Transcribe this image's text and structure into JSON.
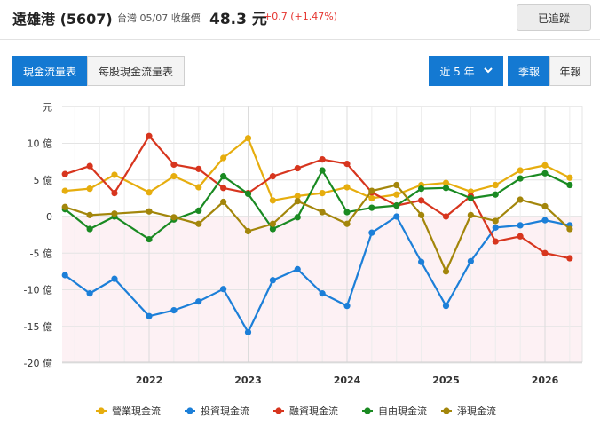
{
  "header": {
    "stock_name": "遠雄港 (5607)",
    "quote_label": "台灣 05/07 收盤價",
    "price": "48.3 元",
    "change": "+0.7 (+1.47%)",
    "follow_label": "已追蹤"
  },
  "toolbar": {
    "tab_cashflow": "現金流量表",
    "tab_per_share": "每股現金流量表",
    "range_label": "近 5 年",
    "quarterly_label": "季報",
    "annual_label": "年報"
  },
  "colors": {
    "operating": "#e6ad0e",
    "investing": "#1c7fd8",
    "financing": "#d7351e",
    "free": "#1a8a22",
    "net": "#a3860b",
    "accent": "#1479d2"
  },
  "chart_data": {
    "type": "line",
    "unit_label": "元",
    "y_tick_labels": [
      "10 億",
      "5 億",
      "0",
      "-5 億",
      "-10 億",
      "-15 億",
      "-20 億"
    ],
    "y_ticks": [
      10,
      5,
      0,
      -5,
      -10,
      -15,
      -20
    ],
    "ylim": [
      -20,
      15
    ],
    "x_tick_labels": [
      "2022",
      "2023",
      "2024",
      "2025",
      "2026"
    ],
    "x_tick_positions": [
      2022.0,
      2023.0,
      2024.0,
      2025.0,
      2026.0
    ],
    "x": [
      2021.15,
      2021.4,
      2021.65,
      2022.0,
      2022.25,
      2022.5,
      2022.75,
      2023.0,
      2023.25,
      2023.5,
      2023.75,
      2024.0,
      2024.25,
      2024.5,
      2024.75,
      2025.0,
      2025.25,
      2025.5,
      2025.75,
      2026.0,
      2026.25
    ],
    "grid": true,
    "legend_position": "bottom",
    "series": [
      {
        "name": "營業現金流",
        "color_key": "operating",
        "values": [
          3.5,
          3.8,
          5.7,
          3.3,
          5.5,
          4.0,
          8.0,
          10.7,
          2.2,
          2.8,
          3.2,
          4.0,
          2.5,
          3.0,
          4.3,
          4.6,
          3.4,
          4.3,
          6.3,
          7.0,
          5.3
        ]
      },
      {
        "name": "投資現金流",
        "color_key": "investing",
        "values": [
          -8.0,
          -10.5,
          -8.5,
          -13.6,
          -12.8,
          -11.6,
          -9.9,
          -15.8,
          -8.7,
          -7.2,
          -10.5,
          -12.2,
          -2.2,
          0.0,
          -6.2,
          -12.2,
          -6.1,
          -1.5,
          -1.2,
          -0.5,
          -1.2
        ]
      },
      {
        "name": "融資現金流",
        "color_key": "financing",
        "values": [
          5.8,
          6.9,
          3.2,
          11.0,
          7.1,
          6.5,
          3.9,
          3.2,
          5.5,
          6.6,
          7.8,
          7.2,
          3.3,
          1.5,
          2.2,
          0.0,
          2.8,
          -3.4,
          -2.7,
          -5.0,
          -5.7
        ]
      },
      {
        "name": "自由現金流",
        "color_key": "free",
        "values": [
          1.0,
          -1.7,
          0.0,
          -3.1,
          -0.4,
          0.8,
          5.5,
          3.1,
          -1.7,
          -0.1,
          6.3,
          0.6,
          1.2,
          1.5,
          3.8,
          3.9,
          2.5,
          3.0,
          5.2,
          5.9,
          4.3
        ]
      },
      {
        "name": "淨現金流",
        "color_key": "net",
        "values": [
          1.3,
          0.2,
          0.4,
          0.7,
          -0.1,
          -1.0,
          2.0,
          -2.0,
          -1.0,
          2.1,
          0.6,
          -1.0,
          3.5,
          4.3,
          0.2,
          -7.5,
          0.2,
          -0.6,
          2.3,
          1.4,
          -1.7
        ]
      }
    ]
  }
}
